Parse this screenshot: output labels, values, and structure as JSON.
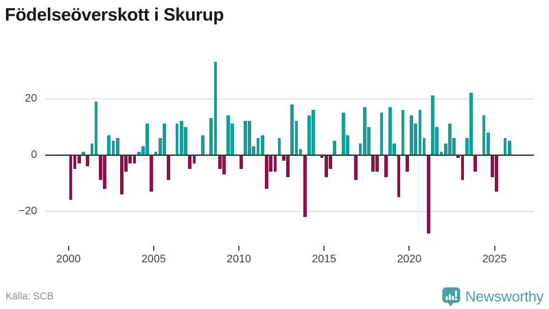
{
  "title": "Födelseöverskott i Skurup",
  "source": {
    "text": "Källa: SCB"
  },
  "brand": {
    "name": "Newsworthy",
    "icon": "newsworthy-speech-bubble-bar-chart-icon",
    "color": "#46a1a5"
  },
  "chart_data": {
    "type": "bar",
    "title": "Födelseöverskott i Skurup",
    "frequency": "quarterly",
    "start": "2000-Q1",
    "end": "2025-Q4",
    "xlabel": "",
    "ylabel": "",
    "legend": "none",
    "grid": "horizontal lines at +20 and -20, dark baseline at 0",
    "ylim": [
      -30,
      36
    ],
    "y_axis": {
      "tick_values": [
        20,
        0,
        -20
      ],
      "tick_labels": [
        "20",
        "0",
        "−20"
      ]
    },
    "x_axis": {
      "tick_years": [
        2000,
        2005,
        2010,
        2015,
        2020,
        2025
      ],
      "tick_labels": [
        "2000",
        "2005",
        "2010",
        "2015",
        "2020",
        "2025"
      ]
    },
    "colors": {
      "positive": "#10a09a",
      "negative": "#970c45"
    },
    "series_name": "Födelseöverskott (kvartal)",
    "years": [
      {
        "year": 2000,
        "quarters": [
          -16,
          -5,
          -3,
          1
        ]
      },
      {
        "year": 2001,
        "quarters": [
          -4,
          4,
          19,
          -9
        ]
      },
      {
        "year": 2002,
        "quarters": [
          -12,
          7,
          5,
          6
        ]
      },
      {
        "year": 2003,
        "quarters": [
          -14,
          -6,
          -3,
          -3
        ]
      },
      {
        "year": 2004,
        "quarters": [
          1,
          3,
          11,
          -13
        ]
      },
      {
        "year": 2005,
        "quarters": [
          1,
          6,
          11,
          -9
        ]
      },
      {
        "year": 2006,
        "quarters": [
          0,
          11,
          12,
          10
        ]
      },
      {
        "year": 2007,
        "quarters": [
          -5,
          -3,
          0,
          7
        ]
      },
      {
        "year": 2008,
        "quarters": [
          0,
          13,
          33,
          -5
        ]
      },
      {
        "year": 2009,
        "quarters": [
          -7,
          14,
          11,
          0
        ]
      },
      {
        "year": 2010,
        "quarters": [
          -5,
          12,
          12,
          3
        ]
      },
      {
        "year": 2011,
        "quarters": [
          6,
          7,
          -12,
          -6
        ]
      },
      {
        "year": 2012,
        "quarters": [
          -6,
          6,
          -2,
          -8
        ]
      },
      {
        "year": 2013,
        "quarters": [
          18,
          12,
          2,
          -22
        ]
      },
      {
        "year": 2014,
        "quarters": [
          14,
          16,
          0,
          -1
        ]
      },
      {
        "year": 2015,
        "quarters": [
          -8,
          -5,
          5,
          0
        ]
      },
      {
        "year": 2016,
        "quarters": [
          15,
          7,
          0,
          -9
        ]
      },
      {
        "year": 2017,
        "quarters": [
          4,
          17,
          10,
          -6
        ]
      },
      {
        "year": 2018,
        "quarters": [
          -6,
          15,
          -8,
          17
        ]
      },
      {
        "year": 2019,
        "quarters": [
          4,
          -15,
          16,
          -6
        ]
      },
      {
        "year": 2020,
        "quarters": [
          14,
          11,
          16,
          6
        ]
      },
      {
        "year": 2021,
        "quarters": [
          -28,
          21,
          10,
          1
        ]
      },
      {
        "year": 2022,
        "quarters": [
          4,
          11,
          6,
          -1
        ]
      },
      {
        "year": 2023,
        "quarters": [
          -9,
          6,
          22,
          -6
        ]
      },
      {
        "year": 2024,
        "quarters": [
          0,
          14,
          8,
          -8
        ]
      },
      {
        "year": 2025,
        "quarters": [
          -13,
          0,
          6,
          5
        ]
      }
    ]
  }
}
